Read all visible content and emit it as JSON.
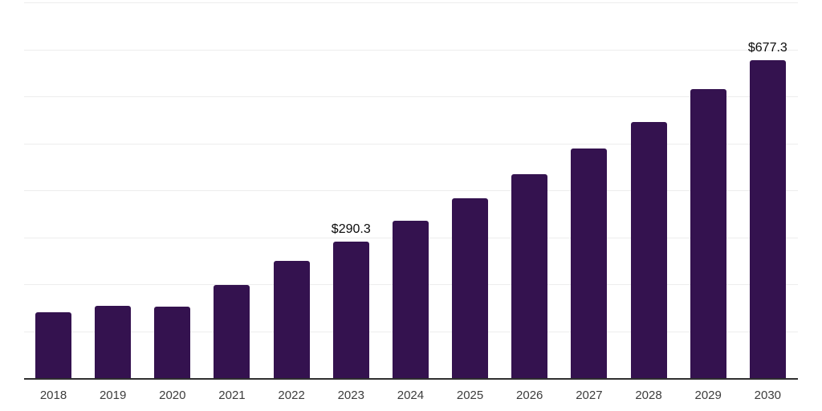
{
  "chart_data": {
    "type": "bar",
    "title": "",
    "xlabel": "",
    "ylabel": "",
    "categories": [
      "2018",
      "2019",
      "2020",
      "2021",
      "2022",
      "2023",
      "2024",
      "2025",
      "2026",
      "2027",
      "2028",
      "2029",
      "2030"
    ],
    "values": [
      141,
      154,
      153,
      198,
      250,
      290.3,
      335,
      383,
      434,
      489,
      545,
      615,
      677.3
    ],
    "data_labels": [
      {
        "category": "2023",
        "text": "$290.3"
      },
      {
        "category": "2030",
        "text": "$677.3"
      }
    ],
    "ylim": [
      0,
      800
    ],
    "grid_step": 100,
    "grid": "horizontal",
    "legend": "none",
    "y_axis_labels": "none",
    "colors": {
      "bar": "#34124F",
      "axis_line": "#2f2f2f",
      "gridline": "#ededed",
      "tick_label": "#3c3c3c",
      "data_label": "#0a0a0a",
      "background": "#ffffff"
    }
  }
}
